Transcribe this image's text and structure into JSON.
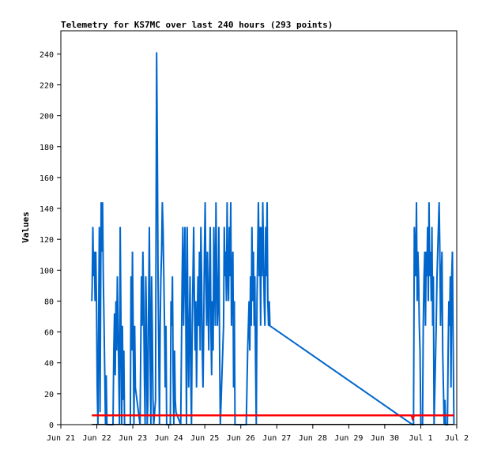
{
  "chart_data": {
    "type": "line",
    "title": "Telemetry for KS7MC over last 240 hours (293 points)",
    "ylabel": "Values",
    "xlabel": "",
    "x_ticks": [
      "Jun 21",
      "Jun 22",
      "Jun 23",
      "Jun 24",
      "Jun 25",
      "Jun 26",
      "Jun 27",
      "Jun 28",
      "Jun 29",
      "Jun 30",
      "Jul 1",
      "Jul 2"
    ],
    "y_ticks": [
      "0",
      "20",
      "40",
      "60",
      "80",
      "100",
      "120",
      "140",
      "160",
      "180",
      "200",
      "220",
      "240"
    ],
    "xlim": [
      "Jun 21",
      "Jul 2"
    ],
    "ylim": [
      0,
      255
    ],
    "grid": false,
    "legend": "none",
    "series": [
      {
        "color": "#0066cc",
        "x_unit": "days since Jun 21 00:00",
        "points": [
          [
            0.86,
            80
          ],
          [
            0.87,
            88
          ],
          [
            0.89,
            128
          ],
          [
            0.91,
            96
          ],
          [
            0.93,
            112
          ],
          [
            0.95,
            80
          ],
          [
            0.97,
            112
          ],
          [
            0.99,
            80
          ],
          [
            1.01,
            24
          ],
          [
            1.03,
            0
          ],
          [
            1.05,
            64
          ],
          [
            1.07,
            128
          ],
          [
            1.09,
            8
          ],
          [
            1.12,
            144
          ],
          [
            1.14,
            112
          ],
          [
            1.16,
            144
          ],
          [
            1.18,
            96
          ],
          [
            1.2,
            64
          ],
          [
            1.22,
            32
          ],
          [
            1.24,
            0
          ],
          [
            1.26,
            32
          ],
          [
            1.28,
            0
          ],
          [
            1.32,
            0
          ],
          [
            1.45,
            0
          ],
          [
            1.47,
            48
          ],
          [
            1.49,
            72
          ],
          [
            1.51,
            32
          ],
          [
            1.53,
            80
          ],
          [
            1.55,
            48
          ],
          [
            1.57,
            96
          ],
          [
            1.59,
            64
          ],
          [
            1.61,
            32
          ],
          [
            1.63,
            0
          ],
          [
            1.65,
            128
          ],
          [
            1.67,
            64
          ],
          [
            1.69,
            0
          ],
          [
            1.71,
            64
          ],
          [
            1.73,
            16
          ],
          [
            1.75,
            48
          ],
          [
            1.77,
            0
          ],
          [
            1.93,
            0
          ],
          [
            1.95,
            96
          ],
          [
            1.97,
            48
          ],
          [
            1.99,
            112
          ],
          [
            2.01,
            64
          ],
          [
            2.03,
            0
          ],
          [
            2.05,
            64
          ],
          [
            2.07,
            24
          ],
          [
            2.2,
            0
          ],
          [
            2.22,
            48
          ],
          [
            2.24,
            96
          ],
          [
            2.26,
            64
          ],
          [
            2.28,
            112
          ],
          [
            2.3,
            80
          ],
          [
            2.32,
            32
          ],
          [
            2.34,
            0
          ],
          [
            2.36,
            96
          ],
          [
            2.38,
            64
          ],
          [
            2.4,
            0
          ],
          [
            2.42,
            16
          ],
          [
            2.44,
            80
          ],
          [
            2.46,
            128
          ],
          [
            2.48,
            48
          ],
          [
            2.5,
            0
          ],
          [
            2.52,
            96
          ],
          [
            2.54,
            64
          ],
          [
            2.56,
            16
          ],
          [
            2.58,
            0
          ],
          [
            2.63,
            16
          ],
          [
            2.66,
            241
          ],
          [
            2.68,
            176
          ],
          [
            2.7,
            96
          ],
          [
            2.72,
            48
          ],
          [
            2.74,
            0
          ],
          [
            2.76,
            64
          ],
          [
            2.78,
            96
          ],
          [
            2.8,
            112
          ],
          [
            2.82,
            144
          ],
          [
            2.84,
            128
          ],
          [
            2.86,
            96
          ],
          [
            2.88,
            64
          ],
          [
            2.9,
            24
          ],
          [
            2.92,
            64
          ],
          [
            2.94,
            0
          ],
          [
            3.04,
            0
          ],
          [
            3.06,
            80
          ],
          [
            3.08,
            64
          ],
          [
            3.1,
            96
          ],
          [
            3.12,
            32
          ],
          [
            3.14,
            0
          ],
          [
            3.16,
            48
          ],
          [
            3.18,
            16
          ],
          [
            3.2,
            8
          ],
          [
            3.33,
            0
          ],
          [
            3.35,
            48
          ],
          [
            3.37,
            96
          ],
          [
            3.39,
            128
          ],
          [
            3.41,
            64
          ],
          [
            3.43,
            96
          ],
          [
            3.45,
            128
          ],
          [
            3.47,
            80
          ],
          [
            3.49,
            0
          ],
          [
            3.51,
            128
          ],
          [
            3.53,
            64
          ],
          [
            3.55,
            24
          ],
          [
            3.57,
            64
          ],
          [
            3.59,
            96
          ],
          [
            3.61,
            32
          ],
          [
            3.63,
            0
          ],
          [
            3.65,
            64
          ],
          [
            3.67,
            96
          ],
          [
            3.69,
            128
          ],
          [
            3.71,
            80
          ],
          [
            3.73,
            48
          ],
          [
            3.75,
            80
          ],
          [
            3.77,
            24
          ],
          [
            3.79,
            64
          ],
          [
            3.81,
            96
          ],
          [
            3.83,
            64
          ],
          [
            3.85,
            112
          ],
          [
            3.87,
            48
          ],
          [
            3.89,
            128
          ],
          [
            3.91,
            96
          ],
          [
            3.93,
            48
          ],
          [
            3.95,
            24
          ],
          [
            3.97,
            64
          ],
          [
            3.99,
            112
          ],
          [
            4.01,
            144
          ],
          [
            4.03,
            96
          ],
          [
            4.05,
            64
          ],
          [
            4.07,
            112
          ],
          [
            4.09,
            80
          ],
          [
            4.11,
            48
          ],
          [
            4.13,
            96
          ],
          [
            4.15,
            128
          ],
          [
            4.17,
            64
          ],
          [
            4.19,
            32
          ],
          [
            4.21,
            80
          ],
          [
            4.23,
            48
          ],
          [
            4.25,
            128
          ],
          [
            4.27,
            96
          ],
          [
            4.29,
            64
          ],
          [
            4.31,
            144
          ],
          [
            4.33,
            96
          ],
          [
            4.35,
            64
          ],
          [
            4.37,
            80
          ],
          [
            4.39,
            128
          ],
          [
            4.41,
            48
          ],
          [
            4.43,
            0
          ],
          [
            4.52,
            64
          ],
          [
            4.54,
            128
          ],
          [
            4.56,
            96
          ],
          [
            4.58,
            112
          ],
          [
            4.6,
            80
          ],
          [
            4.62,
            144
          ],
          [
            4.64,
            96
          ],
          [
            4.66,
            80
          ],
          [
            4.68,
            128
          ],
          [
            4.7,
            96
          ],
          [
            4.72,
            144
          ],
          [
            4.74,
            64
          ],
          [
            4.76,
            96
          ],
          [
            4.78,
            112
          ],
          [
            4.8,
            24
          ],
          [
            4.82,
            80
          ],
          [
            4.84,
            0
          ],
          [
            5.15,
            0
          ],
          [
            5.17,
            24
          ],
          [
            5.19,
            48
          ],
          [
            5.21,
            64
          ],
          [
            5.23,
            80
          ],
          [
            5.25,
            48
          ],
          [
            5.27,
            96
          ],
          [
            5.29,
            64
          ],
          [
            5.31,
            128
          ],
          [
            5.33,
            80
          ],
          [
            5.35,
            112
          ],
          [
            5.37,
            64
          ],
          [
            5.39,
            96
          ],
          [
            5.41,
            40
          ],
          [
            5.43,
            0
          ],
          [
            5.45,
            80
          ],
          [
            5.47,
            112
          ],
          [
            5.49,
            144
          ],
          [
            5.51,
            96
          ],
          [
            5.53,
            128
          ],
          [
            5.55,
            64
          ],
          [
            5.57,
            128
          ],
          [
            5.59,
            96
          ],
          [
            5.61,
            144
          ],
          [
            5.63,
            112
          ],
          [
            5.65,
            80
          ],
          [
            5.67,
            64
          ],
          [
            5.69,
            128
          ],
          [
            5.71,
            96
          ],
          [
            5.73,
            144
          ],
          [
            5.75,
            80
          ],
          [
            5.77,
            64
          ],
          [
            5.79,
            80
          ],
          [
            5.81,
            64
          ],
          [
            9.77,
            0
          ],
          [
            9.8,
            0
          ],
          [
            9.82,
            128
          ],
          [
            9.84,
            112
          ],
          [
            9.86,
            96
          ],
          [
            9.88,
            144
          ],
          [
            9.9,
            80
          ],
          [
            9.92,
            112
          ],
          [
            9.94,
            96
          ],
          [
            9.96,
            64
          ],
          [
            9.98,
            48
          ],
          [
            10.0,
            0
          ],
          [
            10.05,
            0
          ],
          [
            10.07,
            64
          ],
          [
            10.09,
            96
          ],
          [
            10.11,
            112
          ],
          [
            10.13,
            64
          ],
          [
            10.15,
            112
          ],
          [
            10.17,
            96
          ],
          [
            10.19,
            128
          ],
          [
            10.21,
            80
          ],
          [
            10.23,
            144
          ],
          [
            10.25,
            96
          ],
          [
            10.27,
            112
          ],
          [
            10.29,
            80
          ],
          [
            10.31,
            128
          ],
          [
            10.33,
            64
          ],
          [
            10.35,
            96
          ],
          [
            10.37,
            0
          ],
          [
            10.43,
            64
          ],
          [
            10.45,
            96
          ],
          [
            10.47,
            112
          ],
          [
            10.49,
            128
          ],
          [
            10.51,
            144
          ],
          [
            10.53,
            112
          ],
          [
            10.55,
            64
          ],
          [
            10.57,
            96
          ],
          [
            10.59,
            112
          ],
          [
            10.61,
            48
          ],
          [
            10.63,
            24
          ],
          [
            10.65,
            0
          ],
          [
            10.67,
            16
          ],
          [
            10.69,
            0
          ],
          [
            10.74,
            0
          ],
          [
            10.76,
            48
          ],
          [
            10.78,
            80
          ],
          [
            10.8,
            64
          ],
          [
            10.82,
            96
          ],
          [
            10.84,
            24
          ],
          [
            10.86,
            96
          ],
          [
            10.88,
            112
          ],
          [
            10.9,
            56
          ],
          [
            10.92,
            0
          ]
        ]
      },
      {
        "color": "#ff0000",
        "x_unit": "days since Jun 21 00:00",
        "points": [
          [
            0.86,
            6
          ],
          [
            9.75,
            6
          ],
          [
            9.77,
            4
          ],
          [
            9.82,
            6
          ],
          [
            10.92,
            6
          ]
        ]
      }
    ]
  }
}
